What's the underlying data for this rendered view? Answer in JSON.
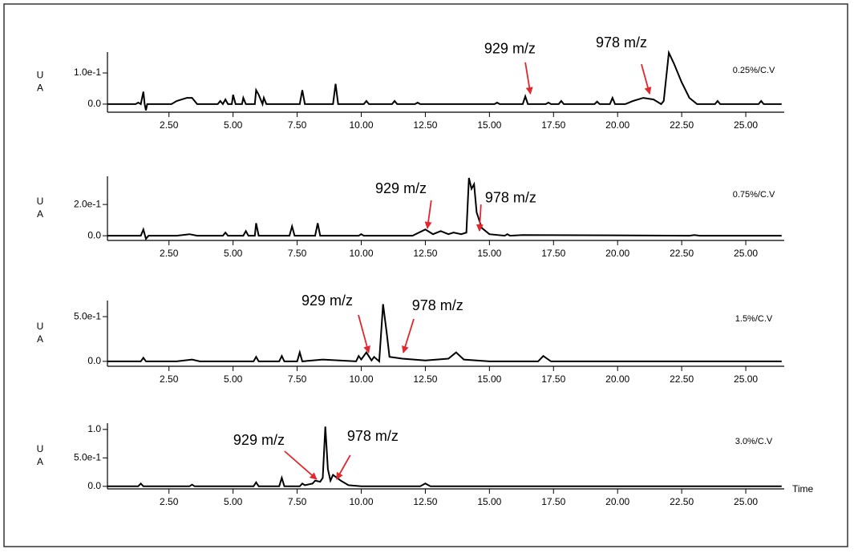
{
  "chart_data": [
    {
      "type": "line",
      "ylabel": [
        "U",
        "A"
      ],
      "condition": "0.25%/C.V",
      "condition_color": "#e0282e",
      "xlim": [
        0.1,
        26.5
      ],
      "ylim": [
        -0.026,
        0.167
      ],
      "xticks": [
        {
          "value": 2.5,
          "label": "2.50"
        },
        {
          "value": 5,
          "label": "5.00"
        },
        {
          "value": 7.5,
          "label": "7.50"
        },
        {
          "value": 10,
          "label": "10.00"
        },
        {
          "value": 12.5,
          "label": "12.50"
        },
        {
          "value": 15,
          "label": "15.00"
        },
        {
          "value": 17.5,
          "label": "17.50"
        },
        {
          "value": 20,
          "label": "20.00"
        },
        {
          "value": 22.5,
          "label": "22.50"
        },
        {
          "value": 25,
          "label": "25.00"
        }
      ],
      "yticks": [
        {
          "value": 0,
          "label": "0.0"
        },
        {
          "value": 0.1,
          "label": "1.0e-1"
        }
      ],
      "series": [
        {
          "color": "#000000",
          "x": [
            0.1,
            1.2,
            1.3,
            1.4,
            1.5,
            1.55,
            1.6,
            1.65,
            1.7,
            2.6,
            2.8,
            3.2,
            3.4,
            3.6,
            4.4,
            4.5,
            4.6,
            4.7,
            4.8,
            4.95,
            5.0,
            5.1,
            5.35,
            5.4,
            5.5,
            5.85,
            5.9,
            6.0,
            6.15,
            6.2,
            6.3,
            7.6,
            7.7,
            7.8,
            8.9,
            9.0,
            9.1,
            10.1,
            10.2,
            10.3,
            11.2,
            11.3,
            11.4,
            12.1,
            12.2,
            12.3,
            15.2,
            15.3,
            15.4,
            16.3,
            16.4,
            16.5,
            17.2,
            17.3,
            17.4,
            17.7,
            17.8,
            17.9,
            19.1,
            19.2,
            19.3,
            19.7,
            19.8,
            19.9,
            20.3,
            20.6,
            21.0,
            21.4,
            21.7,
            21.8,
            22.0,
            22.2,
            22.5,
            22.8,
            23.1,
            23.8,
            23.9,
            24.0,
            25.5,
            25.6,
            25.7,
            26.4
          ],
          "values": [
            0,
            0,
            0.005,
            0,
            0.04,
            0,
            -0.02,
            0,
            0,
            0,
            0.01,
            0.02,
            0.02,
            0,
            0,
            0.01,
            0,
            0.015,
            0,
            0,
            0.03,
            0,
            0,
            0.02,
            0,
            0,
            0.045,
            0.03,
            0,
            0.02,
            0,
            0,
            0.045,
            0,
            0,
            0.065,
            0,
            0,
            0.01,
            0,
            0,
            0.01,
            0,
            0,
            0.005,
            0,
            0,
            0.005,
            0,
            0,
            0.025,
            0,
            0,
            0.005,
            0,
            0,
            0.01,
            0,
            0,
            0.008,
            0,
            0,
            0.02,
            0,
            0,
            0.01,
            0.02,
            0.015,
            0,
            0.01,
            0.165,
            0.13,
            0.07,
            0.02,
            0,
            0,
            0.01,
            0,
            0,
            0.01,
            0,
            0
          ]
        }
      ],
      "annotations": [
        {
          "text": "929 m/z",
          "color": "#000000",
          "xy": [
            16.6,
            0.033
          ],
          "xytext": [
            15.8,
            0.175
          ],
          "tail": [
            16.4,
            0.134
          ]
        },
        {
          "text": "978 m/z",
          "color": "#3f56a6",
          "xy": [
            21.25,
            0.033
          ],
          "xytext": [
            20.15,
            0.195
          ],
          "tail": [
            20.93,
            0.128
          ]
        }
      ]
    },
    {
      "type": "line",
      "ylabel": [
        "U",
        "A"
      ],
      "condition": "0.75%/C.V",
      "condition_color": "#e0282e",
      "xlim": [
        0.1,
        26.5
      ],
      "ylim": [
        -0.03,
        0.38
      ],
      "xticks": [
        {
          "value": 2.5,
          "label": "2.50"
        },
        {
          "value": 5,
          "label": "5.00"
        },
        {
          "value": 7.5,
          "label": "7.50"
        },
        {
          "value": 10,
          "label": "10.00"
        },
        {
          "value": 12.5,
          "label": "12.50"
        },
        {
          "value": 15,
          "label": "15.00"
        },
        {
          "value": 17.5,
          "label": "17.50"
        },
        {
          "value": 20,
          "label": "20.00"
        },
        {
          "value": 22.5,
          "label": "22.50"
        },
        {
          "value": 25,
          "label": "25.00"
        }
      ],
      "yticks": [
        {
          "value": 0,
          "label": "0.0"
        },
        {
          "value": 0.2,
          "label": "2.0e-1"
        }
      ],
      "series": [
        {
          "color": "#000000",
          "x": [
            0.1,
            1.4,
            1.5,
            1.6,
            1.7,
            2.8,
            3.3,
            3.6,
            4.6,
            4.7,
            4.8,
            5.4,
            5.5,
            5.6,
            5.85,
            5.9,
            6.0,
            7.2,
            7.3,
            7.4,
            8.2,
            8.3,
            8.4,
            9.9,
            10.0,
            10.1,
            12.0,
            12.5,
            12.8,
            13.1,
            13.4,
            13.6,
            13.9,
            14.1,
            14.2,
            14.3,
            14.4,
            14.5,
            14.7,
            15.0,
            15.6,
            15.7,
            15.8,
            16.3,
            22.8,
            23.0,
            23.2,
            26.4
          ],
          "values": [
            0,
            0,
            0.04,
            -0.02,
            0,
            0,
            0.01,
            0,
            0,
            0.02,
            0,
            0,
            0.03,
            0,
            0,
            0.08,
            0,
            0,
            0.06,
            0,
            0,
            0.08,
            0,
            0,
            0.01,
            0,
            0,
            0.04,
            0.01,
            0.03,
            0.01,
            0.02,
            0.01,
            0.02,
            0.37,
            0.3,
            0.33,
            0.15,
            0.05,
            0.01,
            0,
            0.01,
            0,
            0.005,
            0,
            0.005,
            0,
            0
          ]
        }
      ],
      "annotations": [
        {
          "text": "929 m/z",
          "color": "#000000",
          "xy": [
            12.58,
            0.047
          ],
          "xytext": [
            11.55,
            0.298
          ],
          "tail": [
            12.73,
            0.226
          ]
        },
        {
          "text": "978 m/z",
          "color": "#3f56a6",
          "xy": [
            14.61,
            0.031
          ],
          "xytext": [
            15.83,
            0.237
          ],
          "tail": [
            14.67,
            0.2
          ]
        }
      ]
    },
    {
      "type": "line",
      "ylabel": [
        "U",
        "A"
      ],
      "condition": "1.5%/C.V",
      "condition_color": "#e0282e",
      "xlim": [
        0.1,
        26.5
      ],
      "ylim": [
        -0.055,
        0.68
      ],
      "xticks": [
        {
          "value": 2.5,
          "label": "2.50"
        },
        {
          "value": 5,
          "label": "5.00"
        },
        {
          "value": 7.5,
          "label": "7.50"
        },
        {
          "value": 10,
          "label": "10.00"
        },
        {
          "value": 12.5,
          "label": "12.50"
        },
        {
          "value": 15,
          "label": "15.00"
        },
        {
          "value": 17.5,
          "label": "17.50"
        },
        {
          "value": 20,
          "label": "20.00"
        },
        {
          "value": 22.5,
          "label": "22.50"
        },
        {
          "value": 25,
          "label": "25.00"
        }
      ],
      "yticks": [
        {
          "value": 0,
          "label": "0.0"
        },
        {
          "value": 0.5,
          "label": "5.0e-1"
        }
      ],
      "series": [
        {
          "color": "#000000",
          "x": [
            0.1,
            1.4,
            1.5,
            1.6,
            2.8,
            3.4,
            3.7,
            5.8,
            5.9,
            6.0,
            6.8,
            6.9,
            7.0,
            7.5,
            7.6,
            7.7,
            8.5,
            9.8,
            9.9,
            10.0,
            10.2,
            10.4,
            10.5,
            10.7,
            10.85,
            11.0,
            11.1,
            11.6,
            12.5,
            13.4,
            13.7,
            14.0,
            15.0,
            16.9,
            17.1,
            17.4,
            26.4
          ],
          "values": [
            0,
            0,
            0.04,
            0,
            0,
            0.02,
            0,
            0,
            0.05,
            0,
            0,
            0.06,
            0,
            0,
            0.1,
            0,
            0.02,
            0,
            0.06,
            0.02,
            0.1,
            0.01,
            0.05,
            0,
            0.64,
            0.3,
            0.05,
            0.03,
            0.01,
            0.03,
            0.1,
            0.02,
            0,
            0,
            0.06,
            0,
            0
          ]
        }
      ],
      "annotations": [
        {
          "text": "929 m/z",
          "color": "#000000",
          "xy": [
            10.29,
            0.097
          ],
          "xytext": [
            8.67,
            0.671
          ],
          "tail": [
            9.89,
            0.519
          ]
        },
        {
          "text": "978 m/z",
          "color": "#3f56a6",
          "xy": [
            11.64,
            0.097
          ],
          "xytext": [
            12.98,
            0.617
          ],
          "tail": [
            12.05,
            0.474
          ]
        }
      ]
    },
    {
      "type": "line",
      "ylabel": [
        "U",
        "A"
      ],
      "condition": "3.0%/C.V",
      "condition_color": "#e0282e",
      "xlabel": "Time",
      "xlim": [
        0.1,
        26.5
      ],
      "ylim": [
        -0.045,
        1.11
      ],
      "xticks": [
        {
          "value": 2.5,
          "label": "2.50"
        },
        {
          "value": 5,
          "label": "5.00"
        },
        {
          "value": 7.5,
          "label": "7.50"
        },
        {
          "value": 10,
          "label": "10.00"
        },
        {
          "value": 12.5,
          "label": "12.50"
        },
        {
          "value": 15,
          "label": "15.00"
        },
        {
          "value": 17.5,
          "label": "17.50"
        },
        {
          "value": 20,
          "label": "20.00"
        },
        {
          "value": 22.5,
          "label": "22.50"
        },
        {
          "value": 25,
          "label": "25.00"
        }
      ],
      "yticks": [
        {
          "value": 0,
          "label": "0.0"
        },
        {
          "value": 0.5,
          "label": "5.0e-1"
        },
        {
          "value": 1,
          "label": "1.0"
        }
      ],
      "series": [
        {
          "color": "#000000",
          "x": [
            0.1,
            1.3,
            1.4,
            1.5,
            3.3,
            3.4,
            3.5,
            5.8,
            5.9,
            6.0,
            6.8,
            6.9,
            7.0,
            7.6,
            7.7,
            7.8,
            8.1,
            8.2,
            8.4,
            8.5,
            8.6,
            8.7,
            8.8,
            8.9,
            9.2,
            9.5,
            10.0,
            12.3,
            12.5,
            12.7,
            15.2,
            26.4
          ],
          "values": [
            0,
            0,
            0.05,
            0,
            0,
            0.03,
            0,
            0,
            0.07,
            0,
            0,
            0.15,
            0,
            0,
            0.05,
            0.02,
            0.05,
            0.1,
            0.08,
            0.15,
            1.05,
            0.3,
            0.1,
            0.2,
            0.1,
            0.02,
            0,
            0,
            0.05,
            0,
            0,
            0
          ]
        }
      ],
      "annotations": [
        {
          "text": "929 m/z",
          "color": "#000000",
          "xy": [
            8.26,
            0.124
          ],
          "xytext": [
            6.01,
            0.8
          ],
          "tail": [
            7.01,
            0.617
          ]
        },
        {
          "text": "978 m/z",
          "color": "#3f56a6",
          "xy": [
            9.04,
            0.124
          ],
          "xytext": [
            10.45,
            0.87
          ],
          "tail": [
            9.57,
            0.547
          ]
        }
      ]
    }
  ]
}
